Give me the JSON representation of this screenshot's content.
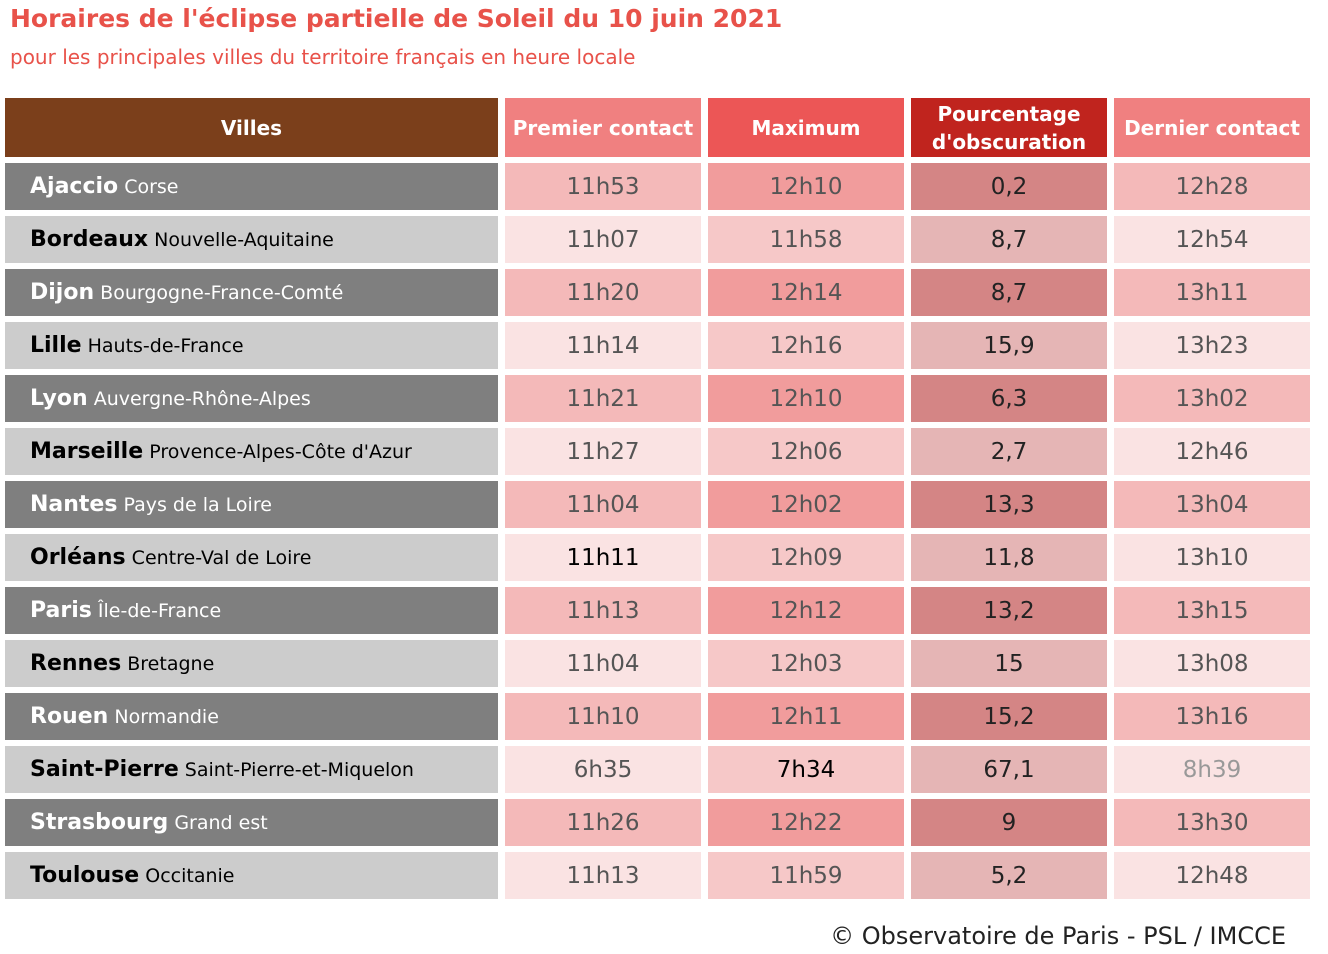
{
  "title": "Horaires de l'éclipse partielle de Soleil du 10 juin 2021",
  "subtitle": "pour les principales villes du territoire français en heure locale",
  "colors": {
    "header_villes": "#7b3f1b",
    "header_premier": "#f08080",
    "header_maximum": "#ec5656",
    "header_pourcentage": "#c0241e",
    "header_dernier": "#f08080"
  },
  "columns": [
    "Villes",
    "Premier contact",
    "Maximum",
    "Pourcentage d'obscuration",
    "Dernier contact"
  ],
  "rows": [
    {
      "city": "Ajaccio",
      "region": "Corse",
      "premier": "11h53",
      "maximum": "12h10",
      "pourcentage": "0,2",
      "dernier": "12h28"
    },
    {
      "city": "Bordeaux",
      "region": "Nouvelle-Aquitaine",
      "premier": "11h07",
      "maximum": "11h58",
      "pourcentage": "8,7",
      "dernier": "12h54"
    },
    {
      "city": "Dijon",
      "region": "Bourgogne-France-Comté",
      "premier": "11h20",
      "maximum": "12h14",
      "pourcentage": "8,7",
      "dernier": "13h11"
    },
    {
      "city": "Lille",
      "region": "Hauts-de-France",
      "premier": "11h14",
      "maximum": "12h16",
      "pourcentage": "15,9",
      "dernier": "13h23"
    },
    {
      "city": "Lyon",
      "region": "Auvergne-Rhône-Alpes",
      "premier": "11h21",
      "maximum": "12h10",
      "pourcentage": "6,3",
      "dernier": "13h02"
    },
    {
      "city": "Marseille",
      "region": "Provence-Alpes-Côte d'Azur",
      "premier": "11h27",
      "maximum": "12h06",
      "pourcentage": "2,7",
      "dernier": "12h46"
    },
    {
      "city": "Nantes",
      "region": "Pays de la Loire",
      "premier": "11h04",
      "maximum": "12h02",
      "pourcentage": "13,3",
      "dernier": "13h04"
    },
    {
      "city": "Orléans",
      "region": "Centre-Val de Loire",
      "premier": "11h11",
      "maximum": "12h09",
      "pourcentage": "11,8",
      "dernier": "13h10"
    },
    {
      "city": "Paris",
      "region": "Île-de-France",
      "premier": "11h13",
      "maximum": "12h12",
      "pourcentage": "13,2",
      "dernier": "13h15"
    },
    {
      "city": "Rennes",
      "region": "Bretagne",
      "premier": "11h04",
      "maximum": "12h03",
      "pourcentage": "15",
      "dernier": "13h08"
    },
    {
      "city": "Rouen",
      "region": "Normandie",
      "premier": "11h10",
      "maximum": "12h11",
      "pourcentage": "15,2",
      "dernier": "13h16"
    },
    {
      "city": "Saint-Pierre",
      "region": "Saint-Pierre-et-Miquelon",
      "premier": "6h35",
      "maximum": "7h34",
      "pourcentage": "67,1",
      "dernier": "8h39"
    },
    {
      "city": "Strasbourg",
      "region": "Grand est",
      "premier": "11h26",
      "maximum": "12h22",
      "pourcentage": "9",
      "dernier": "13h30"
    },
    {
      "city": "Toulouse",
      "region": "Occitanie",
      "premier": "11h13",
      "maximum": "11h59",
      "pourcentage": "5,2",
      "dernier": "12h48"
    }
  ],
  "footer": "© Observatoire de Paris - PSL / IMCCE"
}
